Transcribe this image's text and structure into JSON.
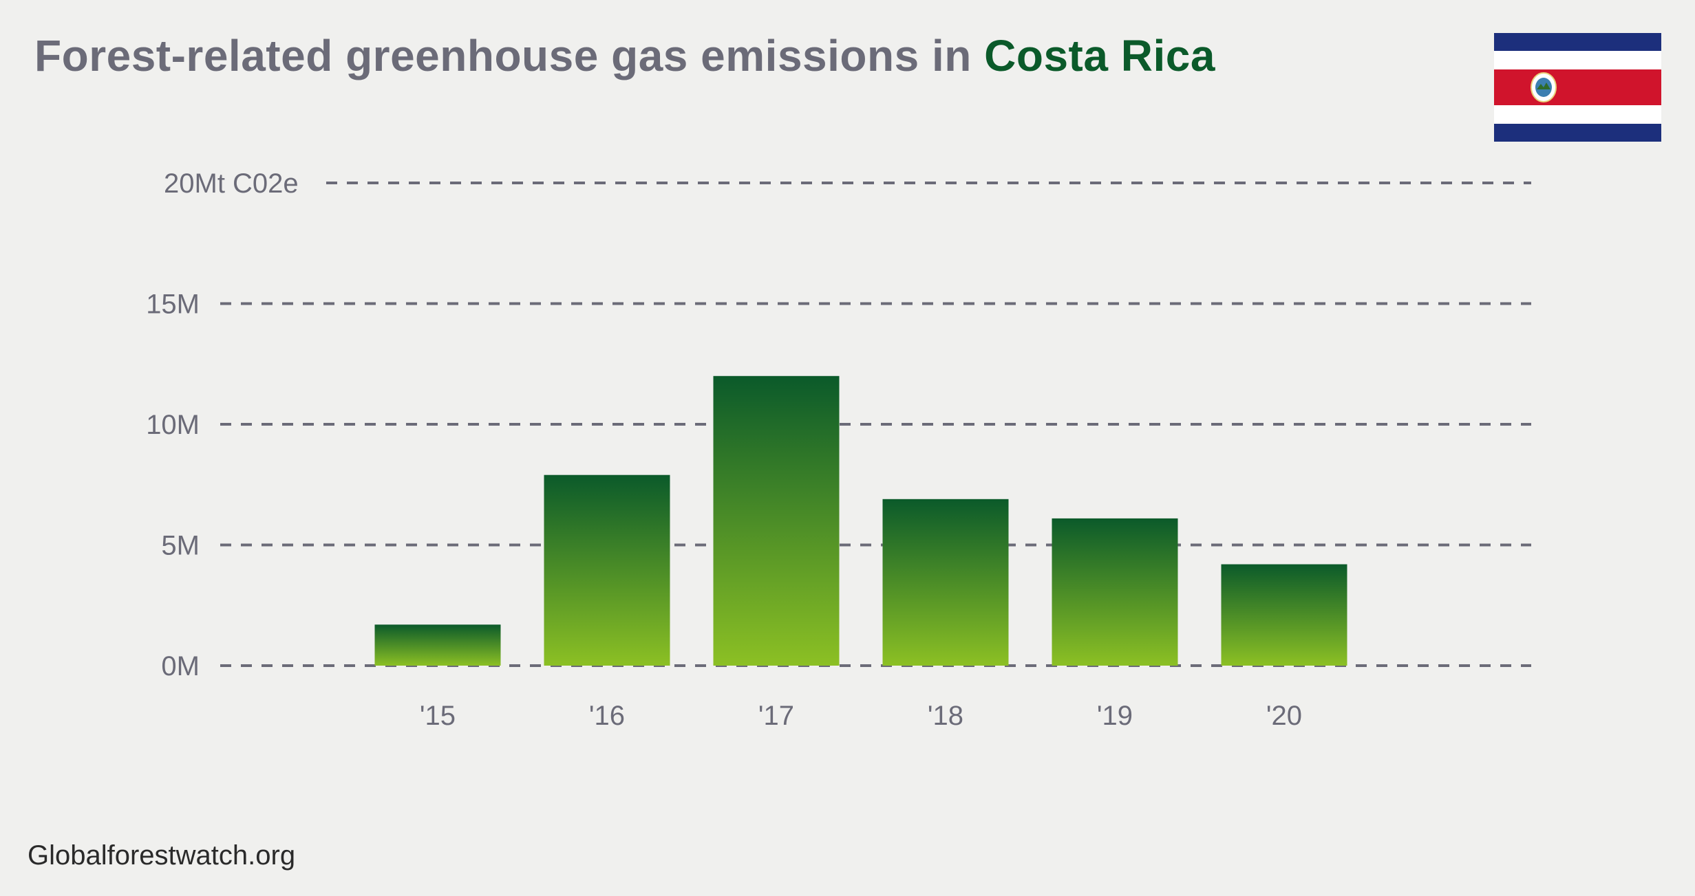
{
  "title": {
    "prefix": "Forest-related greenhouse gas emissions in ",
    "country": "Costa Rica"
  },
  "flag": {
    "icon": "costa-rica-flag-icon",
    "colors": {
      "blue": "#1c2f7c",
      "white": "#ffffff",
      "red": "#d0142c"
    }
  },
  "footer": {
    "source": "Globalforestwatch.org"
  },
  "colors": {
    "bar_top": "#0b5a2a",
    "bar_bottom": "#8cc024",
    "grid": "#6b6b78",
    "axis_text": "#6b6b78",
    "title_accent": "#0b5a2a"
  },
  "chart_data": {
    "type": "bar",
    "categories": [
      "'15",
      "'16",
      "'17",
      "'18",
      "'19",
      "'20"
    ],
    "values": [
      1.7,
      7.9,
      12.0,
      6.9,
      6.1,
      4.2
    ],
    "y_ticks": [
      {
        "value": 0,
        "label": "0M"
      },
      {
        "value": 5,
        "label": "5M"
      },
      {
        "value": 10,
        "label": "10M"
      },
      {
        "value": 15,
        "label": "15M"
      },
      {
        "value": 20,
        "label": "20Mt C02e"
      }
    ],
    "ylim": [
      0,
      20
    ],
    "grid": "dashed horizontal",
    "legend": "none"
  }
}
